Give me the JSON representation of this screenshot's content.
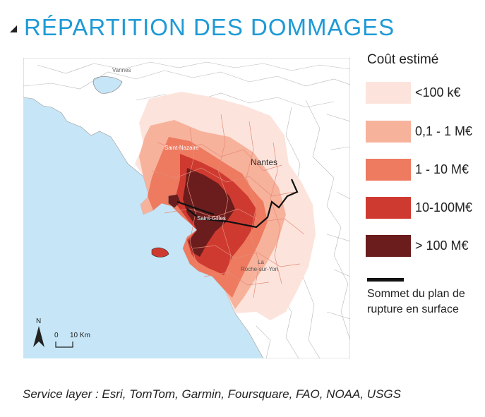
{
  "title": "RÉPARTITION DES DOMMAGES",
  "colors": {
    "title": "#1e9ad6",
    "sea": "#c6e6f7",
    "land": "#ffffff",
    "rupture": "#111111"
  },
  "legend": {
    "title": "Coût estimé",
    "items": [
      {
        "label": "<100 k€",
        "color": "#fce4dc"
      },
      {
        "label": "0,1 - 1 M€",
        "color": "#f7b29c"
      },
      {
        "label": "1 - 10 M€",
        "color": "#ee7a60"
      },
      {
        "label": "10-100M€",
        "color": "#cf3a30"
      },
      {
        "label": "> 100 M€",
        "color": "#6b1c1c"
      }
    ],
    "rupture_label": "Sommet du plan de rupture en surface"
  },
  "map": {
    "north_label": "N",
    "scale_zero": "0",
    "scale_label": "10 Km",
    "places": {
      "vannes": "Vannes",
      "saint_nazaire": "Saint-Nazaire",
      "nantes": "Nantes",
      "saint_gilles": "Saint-Gilles",
      "la": "La",
      "roche": "Roche-sur-Yon"
    }
  },
  "source": "Service layer : Esri, TomTom, Garmin, Foursquare, FAO, NOAA, USGS"
}
